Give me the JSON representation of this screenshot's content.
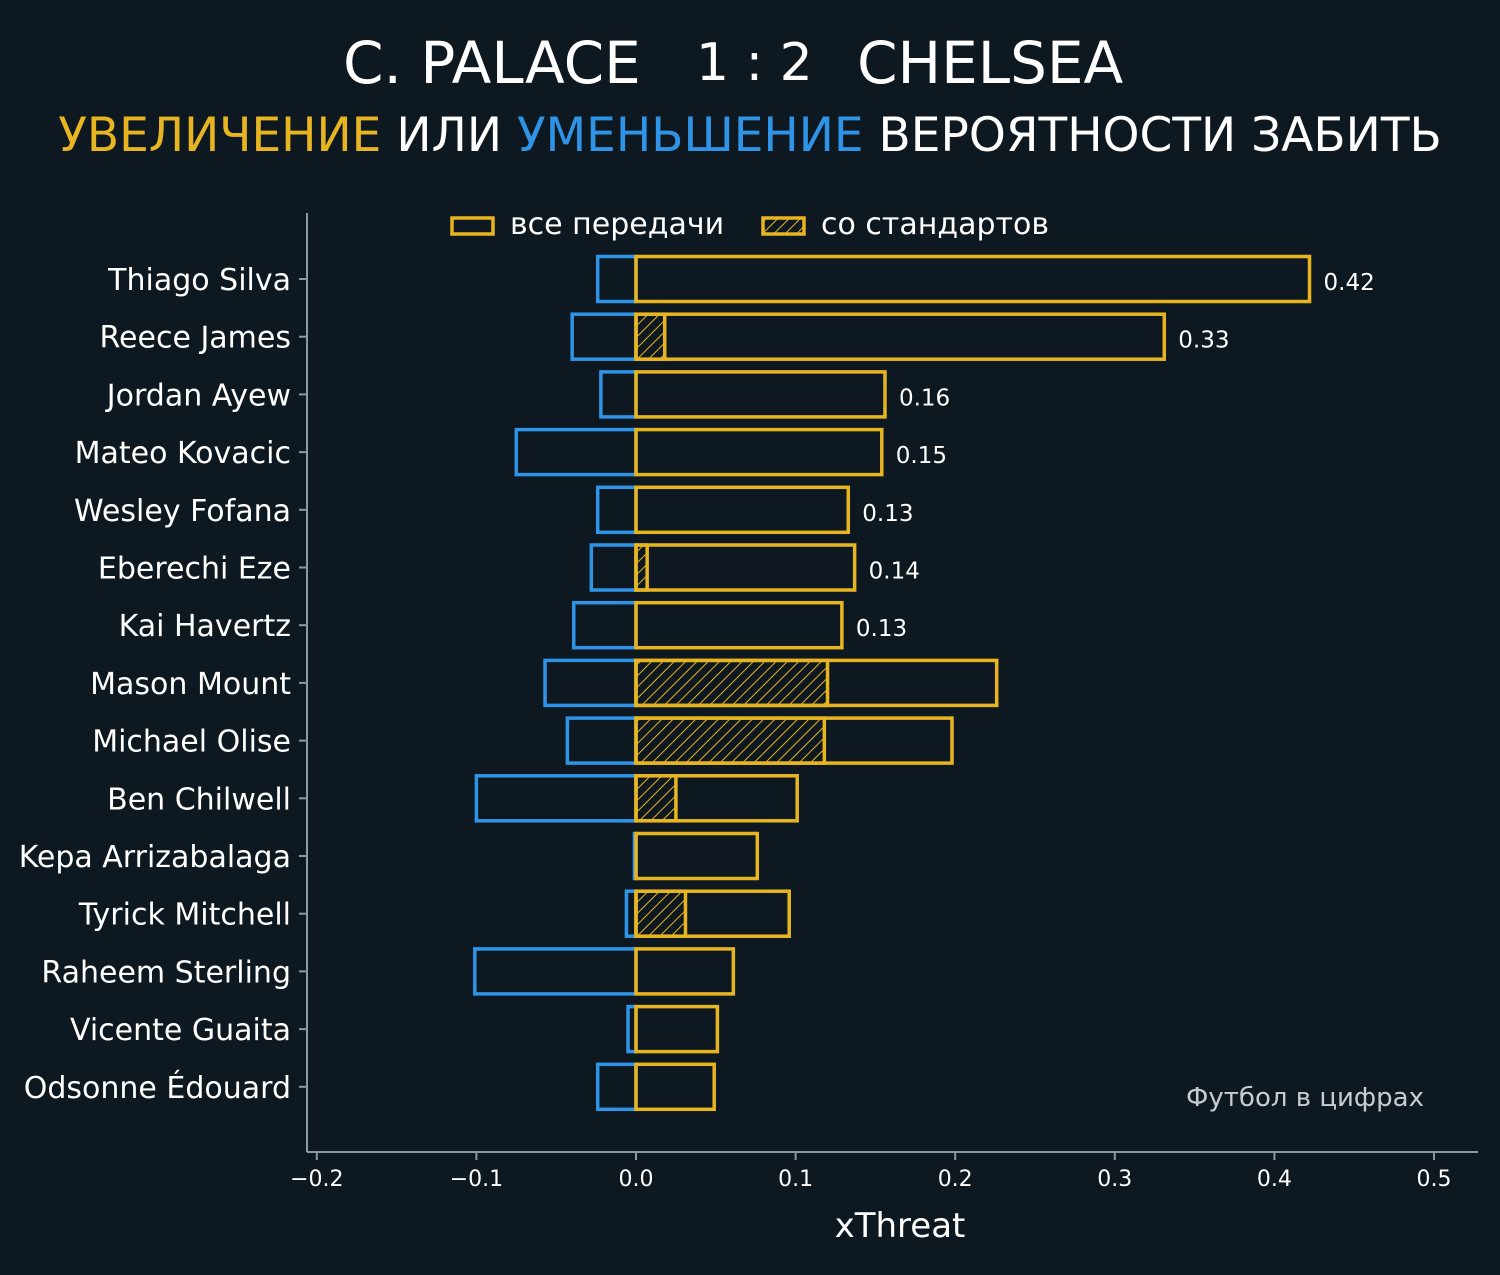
{
  "header": {
    "home_team": "C. PALACE",
    "score": "1 : 2",
    "away_team": "CHELSEA",
    "subtitle_increase": "УВЕЛИЧЕНИЕ",
    "subtitle_or": "ИЛИ",
    "subtitle_decrease": "УМЕНЬШЕНИЕ",
    "subtitle_rest": "ВЕРОЯТНОСТИ ЗАБИТЬ"
  },
  "colors": {
    "background": "#0e1820",
    "increase": "#e8b522",
    "decrease": "#2f94e6",
    "axis": "#8a9aa4",
    "text": "#ffffff",
    "watermark": "#c8ccd0"
  },
  "watermark": "Футбол в цифрах",
  "chart_data": {
    "type": "bar",
    "orientation": "horizontal",
    "xlabel": "xThreat",
    "xlim": [
      -0.21,
      0.53
    ],
    "xticks": [
      -0.2,
      -0.1,
      0.0,
      0.1,
      0.2,
      0.3,
      0.4,
      0.5
    ],
    "xtick_labels": [
      "−0.2",
      "−0.1",
      "0.0",
      "0.1",
      "0.2",
      "0.3",
      "0.4",
      "0.5"
    ],
    "legend": {
      "position": "top",
      "entries": [
        "все передачи",
        "со стандартов"
      ]
    },
    "players": [
      "Thiago Silva",
      "Reece James",
      "Jordan Ayew",
      "Mateo Kovacic",
      "Wesley Fofana",
      "Eberechi Eze",
      "Kai Havertz",
      "Mason Mount",
      "Michael Olise",
      "Ben Chilwell",
      "Kepa Arrizabalaga",
      "Tyrick Mitchell",
      "Raheem Sterling",
      "Vicente Guaita",
      "Odsonne Édouard"
    ],
    "series": [
      {
        "name": "все передачи",
        "kind": "positive",
        "values": [
          0.422,
          0.331,
          0.156,
          0.154,
          0.133,
          0.137,
          0.129,
          0.226,
          0.198,
          0.101,
          0.076,
          0.096,
          0.061,
          0.051,
          0.049
        ]
      },
      {
        "name": "со стандартов",
        "kind": "set-pieces",
        "values": [
          0,
          0.018,
          0,
          0,
          0,
          0.007,
          0,
          0.12,
          0.118,
          0.025,
          0,
          0.031,
          0,
          0,
          0
        ]
      },
      {
        "kind": "negative",
        "values": [
          -0.024,
          -0.04,
          -0.022,
          -0.075,
          -0.024,
          -0.028,
          -0.039,
          -0.057,
          -0.043,
          -0.1,
          -0.001,
          -0.006,
          -0.101,
          -0.005,
          -0.024
        ]
      }
    ],
    "data_labels": [
      "0.42",
      "0.33",
      "0.16",
      "0.15",
      "0.13",
      "0.14",
      "0.13",
      "",
      "",
      "",
      "",
      "",
      "",
      "",
      ""
    ]
  }
}
